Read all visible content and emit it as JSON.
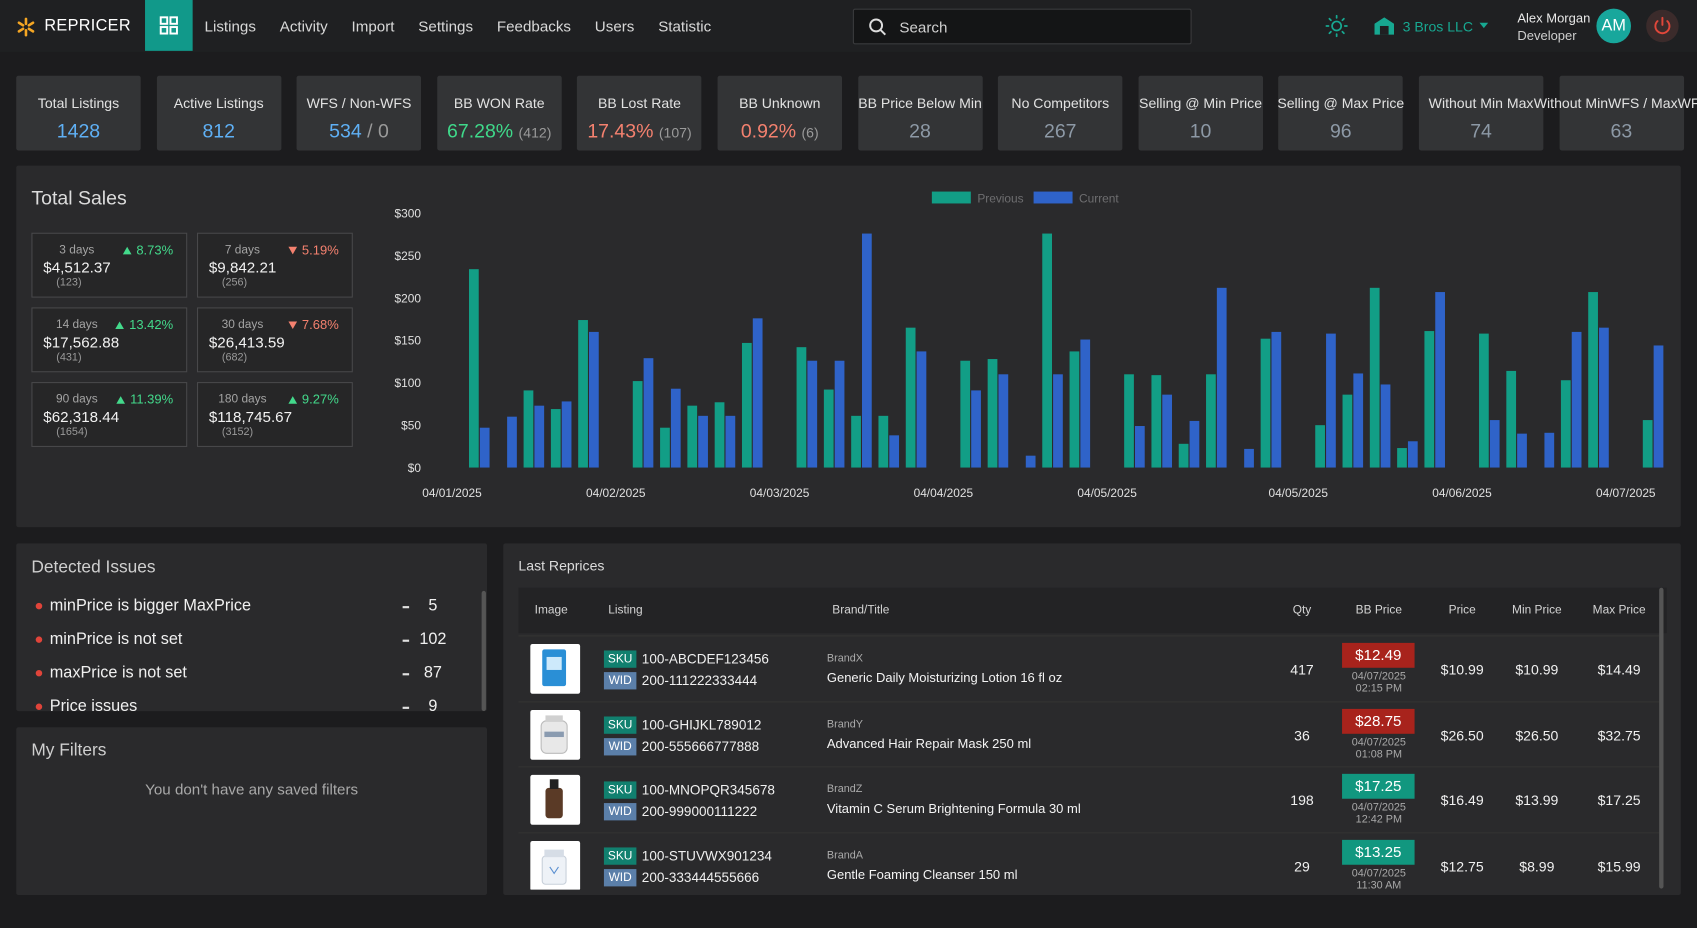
{
  "nav": {
    "brand": "REPRICER",
    "items": [
      "Listings",
      "Activity",
      "Import",
      "Settings",
      "Feedbacks",
      "Users",
      "Statistic"
    ],
    "search_placeholder": "Search",
    "company": "3 Bros LLC",
    "user_name": "Alex Morgan",
    "user_role": "Developer",
    "avatar": "AM"
  },
  "kpis": [
    {
      "label": "Total Listings",
      "value": "1428",
      "color": "#5fb0f5"
    },
    {
      "label": "Active Listings",
      "value": "812",
      "color": "#5fb0f5"
    },
    {
      "label": "WFS / Non-WFS",
      "value": "534",
      "separator": "/",
      "secondary": "0",
      "color": "#5fb0f5"
    },
    {
      "label": "BB WON Rate",
      "value": "67.28%",
      "secondary": "(412)",
      "color": "#3fd98a"
    },
    {
      "label": "BB Lost Rate",
      "value": "17.43%",
      "secondary": "(107)",
      "color": "#f4816f"
    },
    {
      "label": "BB Unknown",
      "value": "0.92%",
      "secondary": "(6)",
      "color": "#f4816f"
    },
    {
      "label": "BB Price Below Min",
      "value": "28",
      "color": "#8d99a6"
    },
    {
      "label": "No Competitors",
      "value": "267",
      "color": "#8d99a6"
    },
    {
      "label": "Selling @ Min Price",
      "value": "10",
      "color": "#8d99a6"
    },
    {
      "label": "Selling @ Max Price",
      "value": "96",
      "color": "#8d99a6"
    },
    {
      "label": "Without Min Max",
      "value": "74",
      "color": "#8d99a6"
    },
    {
      "label": "Without MinWFS / MaxWFS",
      "value": "63",
      "color": "#8d99a6"
    }
  ],
  "total_sales": {
    "title": "Total Sales",
    "periods": [
      {
        "label": "3 days",
        "change": "8.73%",
        "direction": "up",
        "amount": "$4,512.37",
        "orders": "(123)"
      },
      {
        "label": "7 days",
        "change": "5.19%",
        "direction": "down",
        "amount": "$9,842.21",
        "orders": "(256)"
      },
      {
        "label": "14 days",
        "change": "13.42%",
        "direction": "up",
        "amount": "$17,562.88",
        "orders": "(431)"
      },
      {
        "label": "30 days",
        "change": "7.68%",
        "direction": "down",
        "amount": "$26,413.59",
        "orders": "(682)"
      },
      {
        "label": "90 days",
        "change": "11.39%",
        "direction": "up",
        "amount": "$62,318.44",
        "orders": "(1654)"
      },
      {
        "label": "180 days",
        "change": "9.27%",
        "direction": "up",
        "amount": "$118,745.67",
        "orders": "(3152)"
      }
    ]
  },
  "chart_data": {
    "type": "bar",
    "categories": [
      "04/01/2025",
      null,
      null,
      null,
      null,
      null,
      "04/02/2025",
      null,
      null,
      null,
      null,
      null,
      "04/03/2025",
      null,
      null,
      null,
      null,
      null,
      "04/04/2025",
      null,
      null,
      null,
      null,
      null,
      "04/05/2025",
      null,
      null,
      null,
      null,
      null,
      null,
      "04/05/2025",
      null,
      null,
      null,
      null,
      null,
      "04/06/2025",
      null,
      null,
      null,
      null,
      null,
      "04/07/2025",
      null
    ],
    "series": [
      {
        "name": "Previous",
        "color": "#129e86",
        "values": [
          null,
          234,
          null,
          91,
          69,
          174,
          null,
          102,
          47,
          73,
          77,
          147,
          null,
          142,
          92,
          61,
          61,
          165,
          null,
          126,
          128,
          null,
          276,
          137,
          null,
          110,
          109,
          28,
          110,
          null,
          152,
          null,
          50,
          86,
          212,
          23,
          161,
          null,
          158,
          114,
          null,
          103,
          207,
          null,
          56
        ]
      },
      {
        "name": "Current",
        "color": "#2f63c9",
        "values": [
          null,
          47,
          60,
          73,
          78,
          160,
          null,
          129,
          93,
          61,
          61,
          176,
          null,
          126,
          126,
          276,
          38,
          137,
          null,
          91,
          110,
          14,
          110,
          151,
          null,
          49,
          86,
          55,
          212,
          22,
          160,
          null,
          158,
          111,
          98,
          31,
          207,
          null,
          56,
          40,
          41,
          160,
          165,
          null,
          144
        ]
      }
    ],
    "ylim": [
      0,
      300
    ],
    "yticks": [
      {
        "value": 0,
        "label": "$0"
      },
      {
        "value": 50,
        "label": "$50"
      },
      {
        "value": 100,
        "label": "$100"
      },
      {
        "value": 150,
        "label": "$150"
      },
      {
        "value": 200,
        "label": "$200"
      },
      {
        "value": 250,
        "label": "$250"
      },
      {
        "value": 300,
        "label": "$300"
      }
    ],
    "grid": false,
    "legend": "top"
  },
  "issues": {
    "title": "Detected Issues",
    "items": [
      {
        "label": "minPrice is bigger MaxPrice",
        "count": 5
      },
      {
        "label": "minPrice is not set",
        "count": 102
      },
      {
        "label": "maxPrice is not set",
        "count": 87
      },
      {
        "label": "Price issues",
        "count": 9
      }
    ]
  },
  "filters": {
    "title": "My Filters",
    "empty_message": "You don't have any saved filters"
  },
  "reprices": {
    "title": "Last Reprices",
    "columns": [
      "Image",
      "Listing",
      "Brand/Title",
      "Qty",
      "BB Price",
      "Price",
      "Min Price",
      "Max Price"
    ],
    "sku_tag": "SKU",
    "wid_tag": "WID",
    "rows": [
      {
        "sku": "100-ABCDEF123456",
        "wid": "200-111222333444",
        "brand": "BrandX",
        "title": "Generic Daily Moisturizing Lotion 16 fl oz",
        "qty": 417,
        "bb_price": "$12.49",
        "bb_color": "#a8231c",
        "bb_date": "04/07/2025",
        "bb_time": "02:15 PM",
        "price": "$10.99",
        "min_price": "$10.99",
        "max_price": "$14.49"
      },
      {
        "sku": "100-GHIJKL789012",
        "wid": "200-555666777888",
        "brand": "BrandY",
        "title": "Advanced Hair Repair Mask 250 ml",
        "qty": 36,
        "bb_price": "$28.75",
        "bb_color": "#a8231c",
        "bb_date": "04/07/2025",
        "bb_time": "01:08 PM",
        "price": "$26.50",
        "min_price": "$26.50",
        "max_price": "$32.75"
      },
      {
        "sku": "100-MNOPQR345678",
        "wid": "200-999000111222",
        "brand": "BrandZ",
        "title": "Vitamin C Serum Brightening Formula 30 ml",
        "qty": 198,
        "bb_price": "$17.25",
        "bb_color": "#11977f",
        "bb_date": "04/07/2025",
        "bb_time": "12:42 PM",
        "price": "$16.49",
        "min_price": "$13.99",
        "max_price": "$17.25"
      },
      {
        "sku": "100-STUVWX901234",
        "wid": "200-333444555666",
        "brand": "BrandA",
        "title": "Gentle Foaming Cleanser 150 ml",
        "qty": 29,
        "bb_price": "$13.25",
        "bb_color": "#11977f",
        "bb_date": "04/07/2025",
        "bb_time": "11:30 AM",
        "price": "$12.75",
        "min_price": "$8.99",
        "max_price": "$15.99"
      }
    ]
  }
}
